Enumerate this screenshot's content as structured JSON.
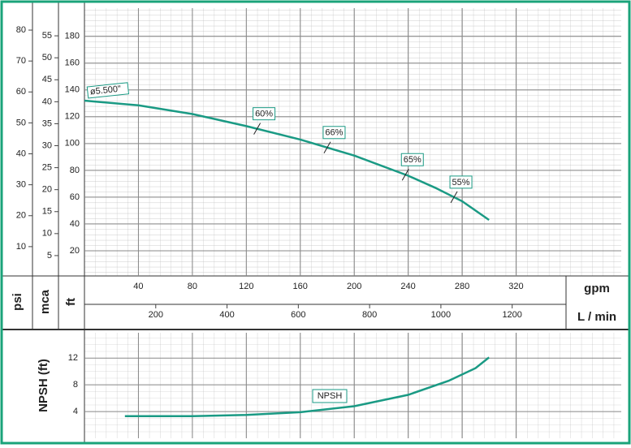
{
  "chart_data": [
    {
      "type": "line",
      "x_label": "gpm",
      "x2_label": "L / min",
      "y_label": "ft",
      "y2_label": "mca",
      "y3_label": "psi",
      "x": [
        0,
        40,
        80,
        120,
        160,
        200,
        240,
        260,
        280,
        300
      ],
      "series": [
        {
          "name": "ø5.500\"",
          "color": "#1a9a84",
          "values": [
            132,
            128.5,
            122,
            113,
            103,
            91,
            76,
            67,
            57,
            43
          ]
        }
      ],
      "xlim": [
        0,
        398
      ],
      "xticks": [
        40,
        80,
        120,
        160,
        200,
        240,
        280,
        320
      ],
      "x2lim": [
        0,
        1506
      ],
      "x2ticks": [
        200,
        400,
        600,
        800,
        1000,
        1200
      ],
      "ylim": [
        0,
        201
      ],
      "yticks": [
        20,
        40,
        60,
        80,
        100,
        120,
        140,
        160,
        180
      ],
      "y2lim": [
        0,
        61.3
      ],
      "y2ticks": [
        5,
        10,
        15,
        20,
        25,
        30,
        35,
        40,
        45,
        50,
        55
      ],
      "y3lim": [
        0,
        87.1
      ],
      "y3ticks": [
        10,
        20,
        30,
        40,
        50,
        60,
        70,
        80
      ],
      "annotations": [
        {
          "label": "60%",
          "x": 128
        },
        {
          "label": "66%",
          "x": 180
        },
        {
          "label": "65%",
          "x": 238
        },
        {
          "label": "55%",
          "x": 274
        }
      ],
      "grid": true
    },
    {
      "type": "line",
      "y_label": "NPSH (ft)",
      "x": [
        30,
        80,
        120,
        160,
        200,
        240,
        270,
        290,
        300
      ],
      "series": [
        {
          "name": "NPSH",
          "color": "#1a9a84",
          "values": [
            3.3,
            3.3,
            3.5,
            3.9,
            4.8,
            6.5,
            8.6,
            10.5,
            12.1
          ]
        }
      ],
      "xlim": [
        0,
        398
      ],
      "xticks": [
        40,
        80,
        120,
        160,
        200,
        240,
        280,
        320
      ],
      "ylim": [
        0,
        15.8
      ],
      "yticks": [
        4,
        8,
        12
      ],
      "grid": true
    }
  ]
}
